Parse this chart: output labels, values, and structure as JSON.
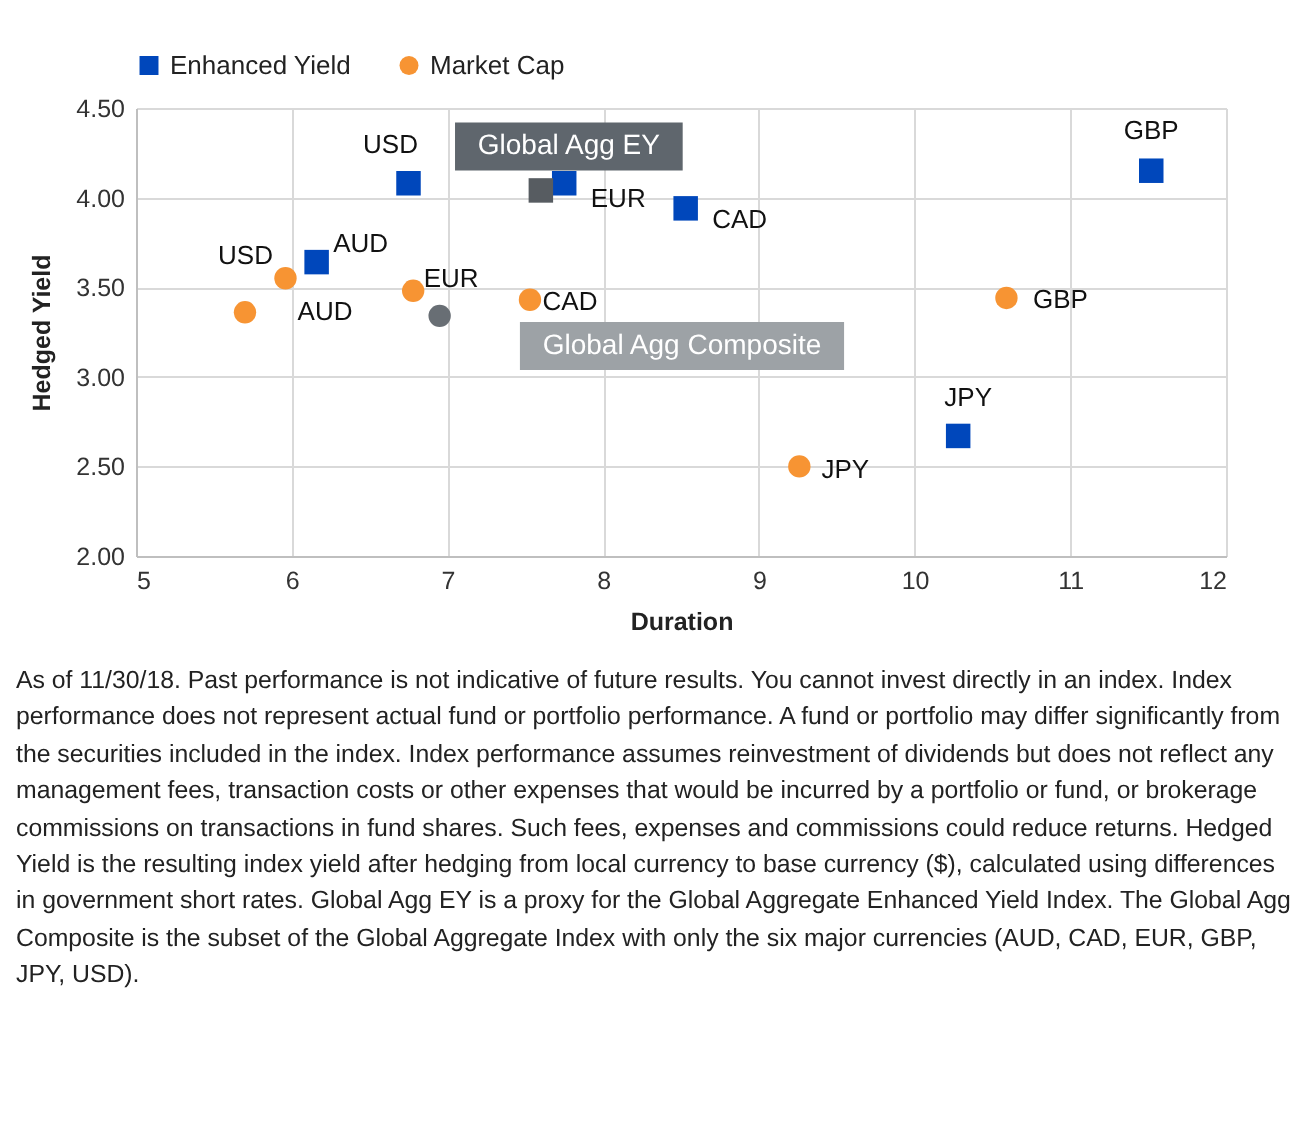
{
  "chart_data": {
    "type": "scatter",
    "xlabel": "Duration",
    "ylabel": "Hedged Yield",
    "xlim": [
      5,
      12
    ],
    "xticks": [
      5,
      6,
      7,
      8,
      9,
      10,
      11,
      12
    ],
    "ylim": [
      2,
      4.5
    ],
    "yticks": [
      {
        "value": 2,
        "label": "2.00"
      },
      {
        "value": 2.5,
        "label": "2.50"
      },
      {
        "value": 3,
        "label": "3.00"
      },
      {
        "value": 3.5,
        "label": "3.50"
      },
      {
        "value": 4,
        "label": "4.00"
      },
      {
        "value": 4.5,
        "label": "4.50"
      }
    ],
    "grid": true,
    "legend": "top",
    "series": [
      {
        "name": "Enhanced Yield",
        "color": "#0047bb",
        "marker": "square",
        "x": [
          6.75,
          6.16,
          7.75,
          8.53,
          10.28,
          11.52
        ],
        "values": [
          4.08,
          3.64,
          4.08,
          3.94,
          2.67,
          4.15
        ]
      },
      {
        "name": "Market Cap",
        "color": "#f79433",
        "marker": "circle",
        "x": [
          5.96,
          5.7,
          6.78,
          7.53,
          10.59,
          9.26
        ],
        "values": [
          3.55,
          3.36,
          3.48,
          3.43,
          3.44,
          2.5
        ]
      },
      {
        "color": "#575c61",
        "marker": "square",
        "x": [
          7.6
        ],
        "values": [
          4.04
        ]
      },
      {
        "color": "#686e74",
        "marker": "circle",
        "x": [
          6.95
        ],
        "values": [
          3.34
        ]
      }
    ],
    "annotations": [
      {
        "text": "USD",
        "x": 6.75,
        "y": 4.08
      },
      {
        "text": "AUD",
        "x": 6.16,
        "y": 3.64
      },
      {
        "text": "EUR",
        "x": 7.75,
        "y": 4.08
      },
      {
        "text": "CAD",
        "x": 8.53,
        "y": 3.94
      },
      {
        "text": "JPY",
        "x": 10.28,
        "y": 2.67
      },
      {
        "text": "GBP",
        "x": 11.52,
        "y": 4.15
      },
      {
        "text": "USD",
        "x": 5.96,
        "y": 3.55
      },
      {
        "text": "AUD",
        "x": 5.7,
        "y": 3.36
      },
      {
        "text": "EUR",
        "x": 6.78,
        "y": 3.48
      },
      {
        "text": "CAD",
        "x": 7.53,
        "y": 3.43
      },
      {
        "text": "GBP",
        "x": 10.59,
        "y": 3.44
      },
      {
        "text": "JPY",
        "x": 9.26,
        "y": 2.5
      },
      {
        "text": "Global Agg EY",
        "x": 7.6,
        "y": 4.04
      },
      "Global Agg Composite",
      "As of 11/30/18. Past performance is not indicative of future results. You cannot invest directly in an index. Index performance does not represent actual fund or portfolio performance. A fund or portfolio may differ significantly from the securities included in the index. Index performance assumes reinvestment of dividends but does not reflect any management fees, transaction costs or other expenses that would be incurred by a portfolio or fund, or brokerage commissions on transactions in fund shares. Such fees, expenses and commissions could reduce returns. Hedged Yield is the resulting index yield after hedging from local currency to base currency ($), calculated using differences in government short rates. Global Agg EY is a proxy for the Global Aggregate Enhanced Yield Index. The Global Agg Composite is the subset of the Global Aggregate Index with only the six major currencies (AUD, CAD, EUR, GBP, JPY, USD)."
    ]
  }
}
